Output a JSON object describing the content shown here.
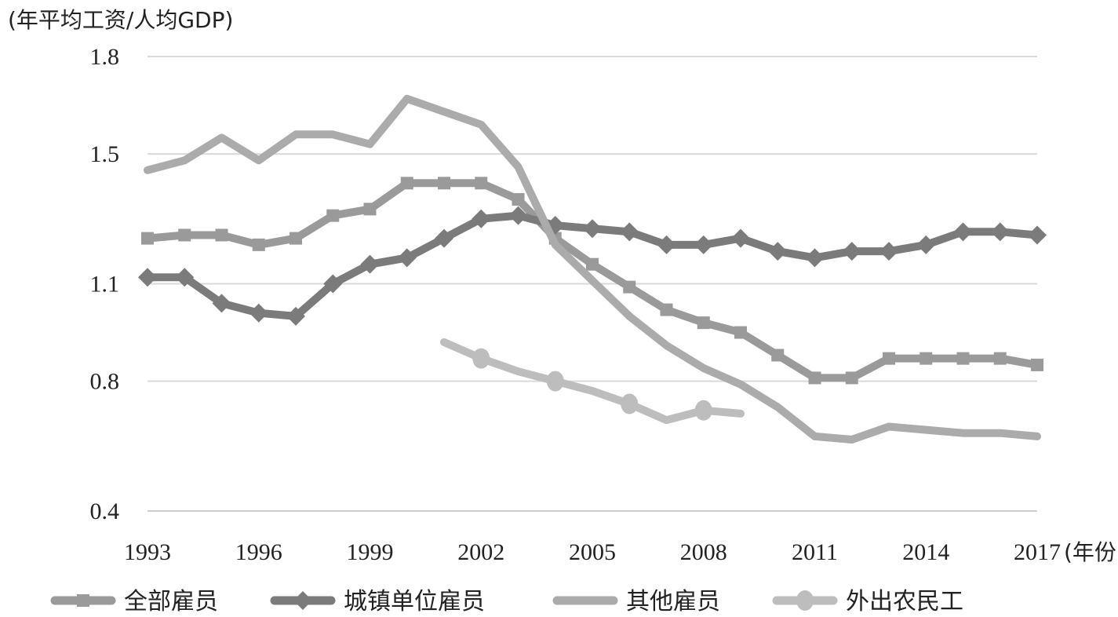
{
  "chart_data": {
    "type": "line",
    "ylabel": "(年平均工资/人均GDP)",
    "xunit": "(年份)",
    "ylim": [
      0.4,
      1.8
    ],
    "y_ticks": [
      "0.4",
      "0.8",
      "1.1",
      "1.5",
      "1.8"
    ],
    "x_tick_labels": [
      "1993",
      "1996",
      "1999",
      "2002",
      "2005",
      "2008",
      "2011",
      "2014",
      "2017"
    ],
    "x": [
      1993,
      1994,
      1995,
      1996,
      1997,
      1998,
      1999,
      2000,
      2001,
      2002,
      2003,
      2004,
      2005,
      2006,
      2007,
      2008,
      2009,
      2010,
      2011,
      2012,
      2013,
      2014,
      2015,
      2016,
      2017
    ],
    "grid": true,
    "legend_position": "bottom",
    "series": [
      {
        "name": "全部雇员",
        "color": "#9a9a9a",
        "marker": "square",
        "values": [
          1.24,
          1.25,
          1.25,
          1.22,
          1.24,
          1.31,
          1.33,
          1.41,
          1.41,
          1.41,
          1.36,
          1.24,
          1.16,
          1.09,
          1.02,
          0.98,
          0.95,
          0.88,
          0.81,
          0.81,
          0.87,
          0.87,
          0.87,
          0.87,
          0.85
        ]
      },
      {
        "name": "城镇单位雇员",
        "color": "#7b7b7b",
        "marker": "diamond",
        "values": [
          1.12,
          1.12,
          1.04,
          1.01,
          1.0,
          1.1,
          1.16,
          1.18,
          1.24,
          1.3,
          1.31,
          1.28,
          1.27,
          1.26,
          1.22,
          1.22,
          1.24,
          1.2,
          1.18,
          1.2,
          1.2,
          1.22,
          1.26,
          1.26,
          1.25
        ]
      },
      {
        "name": "其他雇员",
        "color": "#ababab",
        "marker": "none",
        "values": [
          1.45,
          1.48,
          1.55,
          1.48,
          1.56,
          1.56,
          1.53,
          1.67,
          1.63,
          1.59,
          1.46,
          1.22,
          1.11,
          1.0,
          0.91,
          0.84,
          0.79,
          0.72,
          0.63,
          0.62,
          0.66,
          0.65,
          0.64,
          0.64,
          0.63
        ]
      },
      {
        "name": "外出农民工",
        "color": "#bdbdbd",
        "marker": "circle",
        "values": [
          null,
          null,
          null,
          null,
          null,
          null,
          null,
          null,
          0.92,
          0.87,
          0.83,
          0.8,
          0.77,
          0.73,
          0.68,
          0.71,
          0.7,
          null,
          null,
          null,
          null,
          null,
          null,
          null,
          null
        ]
      }
    ]
  }
}
